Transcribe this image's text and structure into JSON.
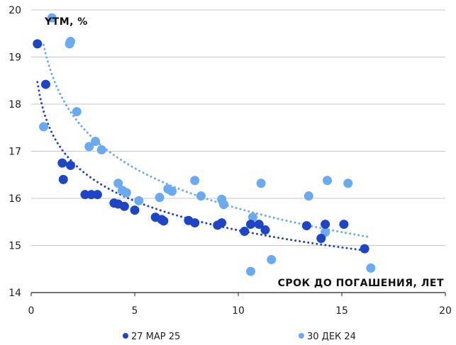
{
  "chart_data": {
    "type": "scatter",
    "title": "",
    "ylabel": "YTM, %",
    "xlabel": "СРОК ДО ПОГАШЕНИЯ, ЛЕТ",
    "xlim": [
      0,
      20
    ],
    "ylim": [
      14,
      20
    ],
    "xticks": [
      0,
      5,
      10,
      15,
      20
    ],
    "yticks": [
      14,
      15,
      16,
      17,
      18,
      19,
      20
    ],
    "grid": "horizontal",
    "legend": "bottom",
    "series": [
      {
        "name": "30 ДЕК 24",
        "color": "#6aaaf0",
        "points": [
          [
            0.6,
            17.52
          ],
          [
            1.0,
            19.83
          ],
          [
            1.85,
            19.28
          ],
          [
            1.9,
            19.33
          ],
          [
            2.2,
            17.84
          ],
          [
            2.8,
            17.1
          ],
          [
            3.1,
            17.21
          ],
          [
            3.4,
            17.03
          ],
          [
            4.2,
            16.32
          ],
          [
            4.4,
            16.17
          ],
          [
            4.6,
            16.12
          ],
          [
            5.2,
            15.95
          ],
          [
            6.2,
            16.02
          ],
          [
            6.6,
            16.2
          ],
          [
            6.8,
            16.15
          ],
          [
            7.9,
            16.38
          ],
          [
            8.2,
            16.05
          ],
          [
            9.2,
            15.98
          ],
          [
            9.3,
            15.87
          ],
          [
            10.6,
            14.45
          ],
          [
            10.7,
            15.6
          ],
          [
            11.1,
            16.32
          ],
          [
            11.6,
            14.7
          ],
          [
            13.4,
            16.05
          ],
          [
            14.2,
            15.28
          ],
          [
            14.3,
            16.38
          ],
          [
            15.3,
            16.32
          ],
          [
            16.4,
            14.52
          ]
        ]
      },
      {
        "name": "27 МАР 25",
        "color": "#1f45c7",
        "points": [
          [
            0.3,
            19.28
          ],
          [
            0.7,
            18.42
          ],
          [
            1.5,
            16.75
          ],
          [
            1.55,
            16.4
          ],
          [
            1.9,
            16.7
          ],
          [
            2.6,
            16.08
          ],
          [
            2.9,
            16.08
          ],
          [
            3.2,
            16.08
          ],
          [
            4.0,
            15.9
          ],
          [
            4.2,
            15.88
          ],
          [
            4.5,
            15.83
          ],
          [
            5.0,
            15.75
          ],
          [
            6.0,
            15.6
          ],
          [
            6.3,
            15.55
          ],
          [
            6.4,
            15.52
          ],
          [
            7.6,
            15.53
          ],
          [
            7.9,
            15.48
          ],
          [
            9.0,
            15.43
          ],
          [
            9.2,
            15.48
          ],
          [
            10.3,
            15.3
          ],
          [
            10.6,
            15.45
          ],
          [
            11.0,
            15.45
          ],
          [
            11.3,
            15.33
          ],
          [
            13.3,
            15.42
          ],
          [
            14.0,
            15.15
          ],
          [
            14.2,
            15.45
          ],
          [
            15.1,
            15.45
          ],
          [
            16.1,
            14.93
          ]
        ]
      }
    ]
  },
  "legend": {
    "items": [
      "27 МАР 25",
      "30 ДЕК 24"
    ]
  }
}
